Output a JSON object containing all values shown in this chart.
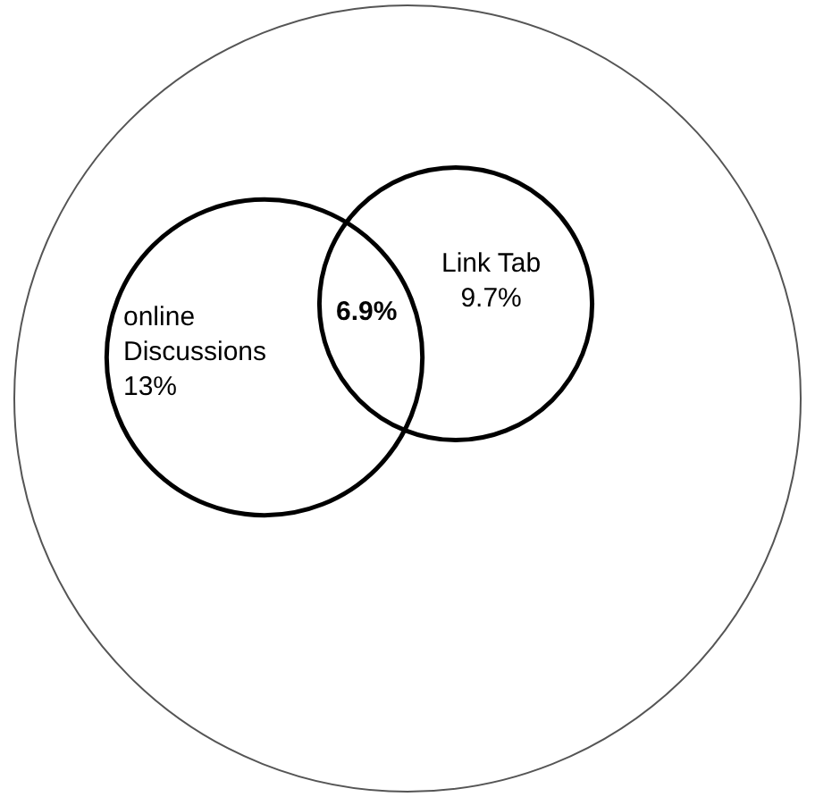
{
  "chart_data": {
    "type": "other",
    "categories": [
      "online Discussions",
      "Link Tab"
    ],
    "values": [
      13,
      9.7
    ],
    "value_labels": [
      "13%",
      "9.7%"
    ],
    "annotations": [
      "6.9%"
    ]
  }
}
